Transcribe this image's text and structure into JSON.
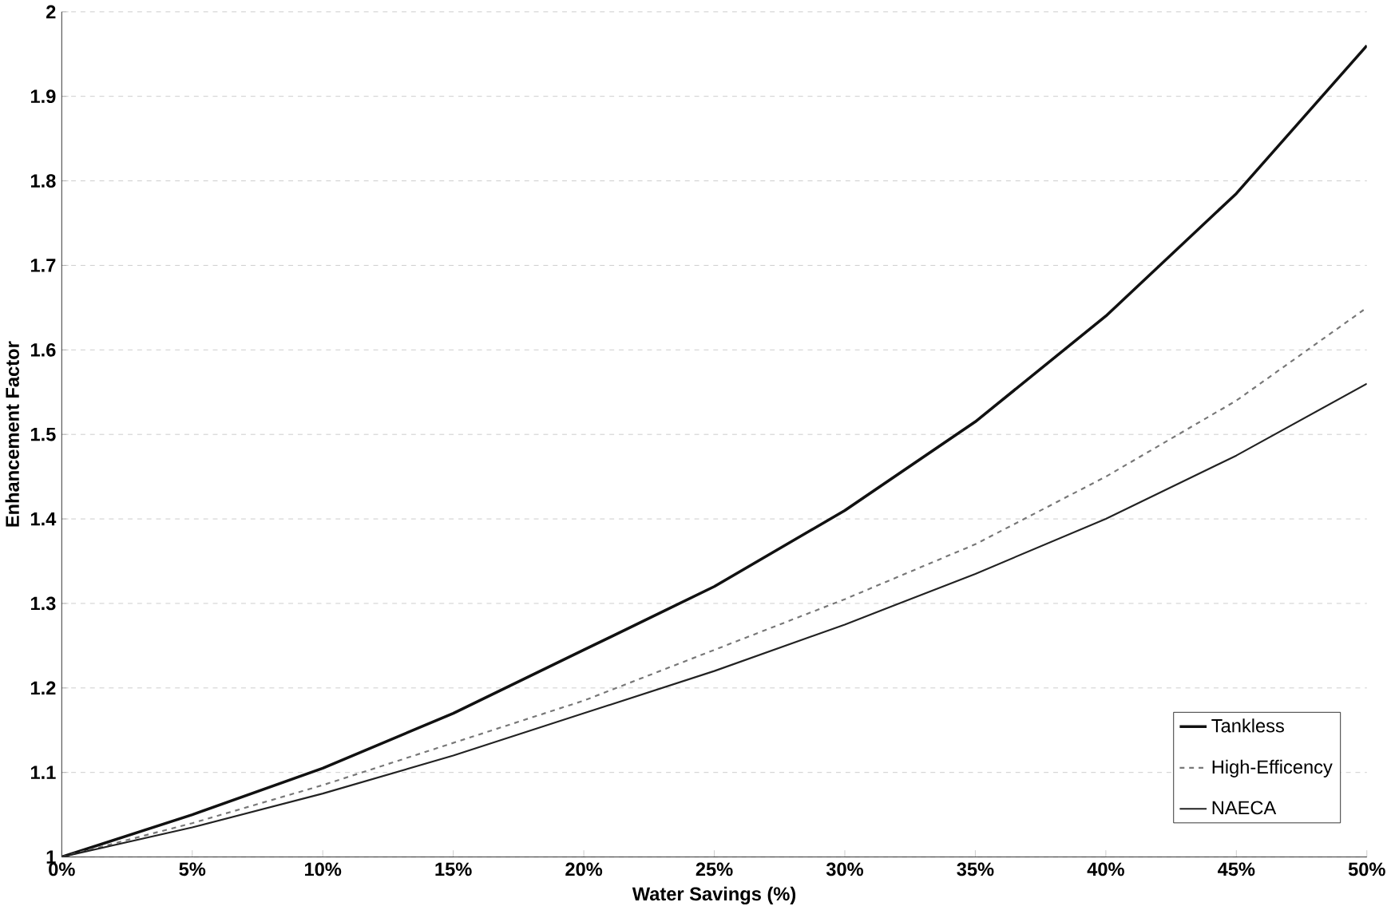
{
  "chart_data": {
    "type": "line",
    "xlabel": "Water Savings (%)",
    "ylabel": "Enhancement Factor",
    "x": [
      0,
      5,
      10,
      15,
      20,
      25,
      30,
      35,
      40,
      45,
      50
    ],
    "series": [
      {
        "name": "Tankless",
        "color": "#111111",
        "line_style": "solid",
        "values": [
          1,
          1.05,
          1.105,
          1.17,
          1.245,
          1.32,
          1.41,
          1.515,
          1.64,
          1.785,
          1.96
        ]
      },
      {
        "name": "High-Efficency",
        "color": "#777777",
        "line_style": "dashed",
        "values": [
          1,
          1.04,
          1.085,
          1.135,
          1.185,
          1.245,
          1.305,
          1.37,
          1.45,
          1.54,
          1.65
        ]
      },
      {
        "name": "NAECA",
        "color": "#222222",
        "line_style": "solid",
        "values": [
          1,
          1.035,
          1.075,
          1.12,
          1.17,
          1.22,
          1.275,
          1.335,
          1.4,
          1.475,
          1.56
        ]
      }
    ],
    "xlim": [
      0,
      50
    ],
    "xticks": [
      {
        "value": 0,
        "label": "0%"
      },
      {
        "value": 5,
        "label": "5%"
      },
      {
        "value": 10,
        "label": "10%"
      },
      {
        "value": 15,
        "label": "15%"
      },
      {
        "value": 20,
        "label": "20%"
      },
      {
        "value": 25,
        "label": "25%"
      },
      {
        "value": 30,
        "label": "30%"
      },
      {
        "value": 35,
        "label": "35%"
      },
      {
        "value": 40,
        "label": "40%"
      },
      {
        "value": 45,
        "label": "45%"
      },
      {
        "value": 50,
        "label": "50%"
      }
    ],
    "ylim": [
      1,
      2
    ],
    "yticks": [
      1,
      1.1,
      1.2,
      1.3,
      1.4,
      1.5,
      1.6,
      1.7,
      1.8,
      1.9,
      2
    ],
    "grid": "y",
    "legend": "bottom right",
    "marker": "none"
  }
}
